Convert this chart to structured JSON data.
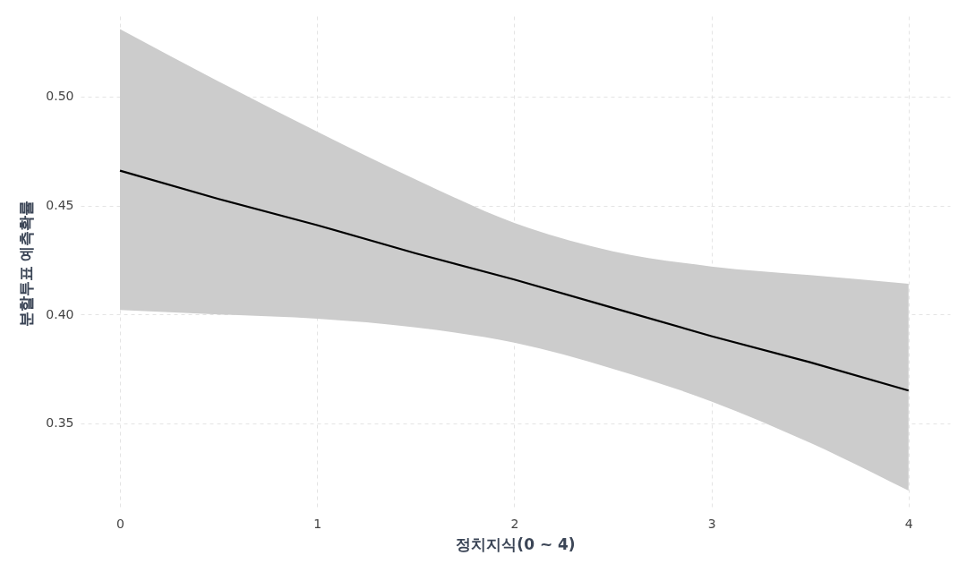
{
  "chart_data": {
    "type": "line",
    "xlabel": "정치지식(0 ~ 4)",
    "ylabel": "분할투표 예측확률",
    "x": [
      0,
      0.5,
      1,
      1.5,
      2,
      2.5,
      3,
      3.5,
      4
    ],
    "series": [
      {
        "color": "#000000",
        "values": [
          0.466,
          0.453,
          0.441,
          0.428,
          0.416,
          0.403,
          0.39,
          0.378,
          0.365
        ],
        "lower": [
          0.402,
          0.4,
          0.398,
          0.394,
          0.387,
          0.375,
          0.36,
          0.341,
          0.319
        ],
        "upper": [
          0.531,
          0.507,
          0.484,
          0.462,
          0.442,
          0.429,
          0.422,
          0.418,
          0.414
        ]
      }
    ],
    "xlim": [
      -0.2,
      4.21
    ],
    "ylim": [
      0.31,
      0.537
    ],
    "xticks": [
      0,
      1,
      2,
      3,
      4
    ],
    "yticks": [
      {
        "value": 0.35,
        "label": "0.35"
      },
      {
        "value": 0.4,
        "label": "0.40"
      },
      {
        "value": 0.45,
        "label": "0.45"
      },
      {
        "value": 0.5,
        "label": "0.50"
      }
    ],
    "grid": true,
    "line_style": "solid",
    "marker": "none"
  }
}
